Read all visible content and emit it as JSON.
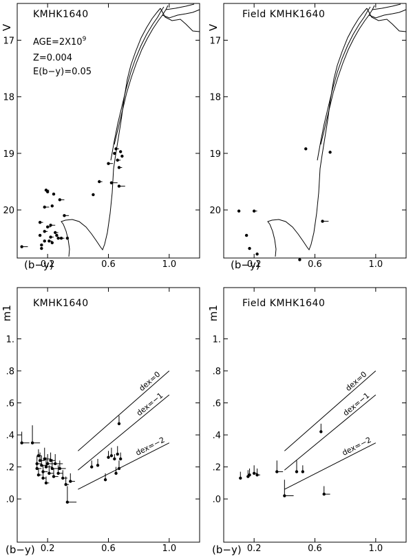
{
  "chart_data": [
    {
      "type": "scatter",
      "panel": "top-left",
      "title": "KMHK1640",
      "xlabel": "(b−y)",
      "ylabel": "V",
      "xlim": [
        0.0,
        1.2
      ],
      "ylim": [
        20.85,
        16.35
      ],
      "xticks": [
        {
          "v": 0.2,
          "label": "0.2"
        },
        {
          "v": 0.6,
          "label": "0.6"
        },
        {
          "v": 1.0,
          "label": "1.0"
        }
      ],
      "yticks": [
        {
          "v": 17,
          "label": "17"
        },
        {
          "v": 18,
          "label": "18"
        },
        {
          "v": 19,
          "label": "19"
        },
        {
          "v": 20,
          "label": "20"
        }
      ],
      "annotations": [
        {
          "text": "AGE=2X10",
          "sup": "9"
        },
        {
          "text": "Z=0.004"
        },
        {
          "text": "E(b−y)=0.05"
        }
      ],
      "points": [
        {
          "x": 0.03,
          "y": 20.65,
          "ex": 0.04
        },
        {
          "x": 0.15,
          "y": 20.45
        },
        {
          "x": 0.15,
          "y": 20.22,
          "ex": 0.02
        },
        {
          "x": 0.16,
          "y": 20.68
        },
        {
          "x": 0.16,
          "y": 20.62
        },
        {
          "x": 0.18,
          "y": 20.55
        },
        {
          "x": 0.18,
          "y": 20.38,
          "ex": 0.02
        },
        {
          "x": 0.18,
          "y": 19.95,
          "ex": 0.03
        },
        {
          "x": 0.19,
          "y": 19.65,
          "ex": 0.02
        },
        {
          "x": 0.2,
          "y": 20.3,
          "ex": 0.02
        },
        {
          "x": 0.2,
          "y": 19.68
        },
        {
          "x": 0.21,
          "y": 20.55,
          "ex": 0.02
        },
        {
          "x": 0.22,
          "y": 20.27,
          "ex": 0.03
        },
        {
          "x": 0.22,
          "y": 20.48,
          "ex": 0.02
        },
        {
          "x": 0.23,
          "y": 20.58
        },
        {
          "x": 0.23,
          "y": 19.93
        },
        {
          "x": 0.24,
          "y": 19.72
        },
        {
          "x": 0.25,
          "y": 20.4,
          "ex": 0.02
        },
        {
          "x": 0.26,
          "y": 20.45
        },
        {
          "x": 0.27,
          "y": 20.5,
          "ex": 0.03
        },
        {
          "x": 0.28,
          "y": 19.82,
          "ex": 0.03
        },
        {
          "x": 0.29,
          "y": 20.5,
          "ex": 0.02
        },
        {
          "x": 0.31,
          "y": 20.1,
          "ex": 0.03
        },
        {
          "x": 0.33,
          "y": 20.5
        },
        {
          "x": 0.5,
          "y": 19.73
        },
        {
          "x": 0.54,
          "y": 19.5,
          "ex": 0.02
        },
        {
          "x": 0.6,
          "y": 19.18,
          "ex": 0.03
        },
        {
          "x": 0.62,
          "y": 19.52,
          "ex": 0.04
        },
        {
          "x": 0.64,
          "y": 19.0
        },
        {
          "x": 0.65,
          "y": 18.92,
          "ex": 0.02
        },
        {
          "x": 0.66,
          "y": 19.12,
          "ex": 0.02
        },
        {
          "x": 0.67,
          "y": 19.25,
          "ex": 0.02
        },
        {
          "x": 0.67,
          "y": 19.58,
          "ex": 0.04
        },
        {
          "x": 0.68,
          "y": 18.97
        },
        {
          "x": 0.69,
          "y": 19.05
        }
      ]
    },
    {
      "type": "scatter",
      "panel": "top-right",
      "title": "Field KMHK1640",
      "xlabel": "(b−y)",
      "ylabel": "V",
      "xlim": [
        0.0,
        1.2
      ],
      "ylim": [
        20.85,
        16.35
      ],
      "xticks": [
        {
          "v": 0.2,
          "label": "0.2"
        },
        {
          "v": 0.6,
          "label": "0.6"
        },
        {
          "v": 1.0,
          "label": "1.0"
        }
      ],
      "yticks": [
        {
          "v": 17,
          "label": "17"
        },
        {
          "v": 18,
          "label": "18"
        },
        {
          "v": 19,
          "label": "19"
        },
        {
          "v": 20,
          "label": "20"
        }
      ],
      "points": [
        {
          "x": 0.1,
          "y": 20.02
        },
        {
          "x": 0.15,
          "y": 20.45
        },
        {
          "x": 0.17,
          "y": 20.68
        },
        {
          "x": 0.2,
          "y": 20.02,
          "ex": 0.02
        },
        {
          "x": 0.22,
          "y": 20.78
        },
        {
          "x": 0.5,
          "y": 20.88
        },
        {
          "x": 0.54,
          "y": 18.92
        },
        {
          "x": 0.65,
          "y": 20.2,
          "ex": 0.04
        },
        {
          "x": 0.7,
          "y": 18.98
        }
      ]
    },
    {
      "type": "scatter",
      "panel": "bottom-left",
      "title": "KMHK1640",
      "xlabel": "(b−y)",
      "ylabel": "m1",
      "xlim": [
        0.0,
        1.2
      ],
      "ylim": [
        -0.27,
        1.32
      ],
      "xticks": [
        {
          "v": 0.2,
          "label": "0.2"
        },
        {
          "v": 0.6,
          "label": "0.6"
        },
        {
          "v": 1.0,
          "label": "1.0"
        }
      ],
      "yticks": [
        {
          "v": 0,
          "label": ".0"
        },
        {
          "v": 0.2,
          "label": ".2"
        },
        {
          "v": 0.4,
          "label": ".4"
        },
        {
          "v": 0.6,
          "label": ".6"
        },
        {
          "v": 0.8,
          "label": ".8"
        },
        {
          "v": 1.0,
          "label": "1."
        }
      ],
      "dex_lines": [
        {
          "label": "dex=0",
          "x1": 0.4,
          "y1": 0.3,
          "x2": 1.0,
          "y2": 0.8
        },
        {
          "label": "dex=−1",
          "x1": 0.4,
          "y1": 0.18,
          "x2": 1.0,
          "y2": 0.65
        },
        {
          "label": "dex=−2",
          "x1": 0.4,
          "y1": 0.06,
          "x2": 1.0,
          "y2": 0.35
        }
      ],
      "points": [
        {
          "x": 0.03,
          "y": 0.35,
          "ex": 0.05,
          "ey": 0.07
        },
        {
          "x": 0.1,
          "y": 0.35,
          "ex": 0.05,
          "ey": 0.11
        },
        {
          "x": 0.13,
          "y": 0.22,
          "ex": 0.03,
          "ey": 0.05
        },
        {
          "x": 0.13,
          "y": 0.19,
          "ex": 0.03,
          "ey": 0.04
        },
        {
          "x": 0.14,
          "y": 0.27,
          "ex": 0.02,
          "ey": 0.04
        },
        {
          "x": 0.14,
          "y": 0.15,
          "ex": 0.02,
          "ey": 0.04
        },
        {
          "x": 0.15,
          "y": 0.24,
          "ex": 0.03,
          "ey": 0.05
        },
        {
          "x": 0.16,
          "y": 0.21,
          "ex": 0.04,
          "ey": 0.06
        },
        {
          "x": 0.17,
          "y": 0.17,
          "ex": 0.03,
          "ey": 0.04
        },
        {
          "x": 0.17,
          "y": 0.13,
          "ex": 0.02,
          "ey": 0.04
        },
        {
          "x": 0.18,
          "y": 0.25,
          "ex": 0.04,
          "ey": 0.07
        },
        {
          "x": 0.19,
          "y": 0.2,
          "ex": 0.04,
          "ey": 0.06
        },
        {
          "x": 0.19,
          "y": 0.1,
          "ex": 0.02,
          "ey": 0.04
        },
        {
          "x": 0.2,
          "y": 0.22,
          "ex": 0.05,
          "ey": 0.06
        },
        {
          "x": 0.21,
          "y": 0.16,
          "ex": 0.03,
          "ey": 0.05
        },
        {
          "x": 0.22,
          "y": 0.24,
          "ex": 0.03,
          "ey": 0.05
        },
        {
          "x": 0.23,
          "y": 0.19,
          "ex": 0.04,
          "ey": 0.06
        },
        {
          "x": 0.24,
          "y": 0.14,
          "ex": 0.03,
          "ey": 0.05
        },
        {
          "x": 0.25,
          "y": 0.22,
          "ex": 0.05,
          "ey": 0.06
        },
        {
          "x": 0.27,
          "y": 0.16,
          "ex": 0.03,
          "ey": 0.05
        },
        {
          "x": 0.28,
          "y": 0.19,
          "ex": 0.04,
          "ey": 0.05
        },
        {
          "x": 0.3,
          "y": 0.13,
          "ex": 0.03,
          "ey": 0.05
        },
        {
          "x": 0.32,
          "y": 0.09,
          "ex": 0.02,
          "ey": 0.05
        },
        {
          "x": 0.33,
          "y": -0.02,
          "ex": 0.06,
          "ey": 0.1
        },
        {
          "x": 0.35,
          "y": 0.11,
          "ex": 0.03,
          "ey": 0.05
        },
        {
          "x": 0.49,
          "y": 0.2,
          "ey": 0.04
        },
        {
          "x": 0.53,
          "y": 0.21,
          "ey": 0.04
        },
        {
          "x": 0.58,
          "y": 0.12,
          "ey": 0.04
        },
        {
          "x": 0.6,
          "y": 0.26,
          "ey": 0.04
        },
        {
          "x": 0.62,
          "y": 0.27,
          "ey": 0.05
        },
        {
          "x": 0.64,
          "y": 0.25,
          "ey": 0.03
        },
        {
          "x": 0.65,
          "y": 0.16,
          "ey": 0.04
        },
        {
          "x": 0.66,
          "y": 0.28,
          "ey": 0.05
        },
        {
          "x": 0.67,
          "y": 0.47,
          "ey": 0.05
        },
        {
          "x": 0.67,
          "y": 0.19,
          "ey": 0.05
        },
        {
          "x": 0.68,
          "y": 0.25,
          "ey": 0.04
        }
      ]
    },
    {
      "type": "scatter",
      "panel": "bottom-right",
      "title": "Field KMHK1640",
      "xlabel": "(b−y)",
      "ylabel": "m1",
      "xlim": [
        0.0,
        1.2
      ],
      "ylim": [
        -0.27,
        1.32
      ],
      "xticks": [
        {
          "v": 0.2,
          "label": "0.2"
        },
        {
          "v": 0.6,
          "label": "0.6"
        },
        {
          "v": 1.0,
          "label": "1.0"
        }
      ],
      "yticks": [
        {
          "v": 0,
          "label": ".0"
        },
        {
          "v": 0.2,
          "label": ".2"
        },
        {
          "v": 0.4,
          "label": ".4"
        },
        {
          "v": 0.6,
          "label": ".6"
        },
        {
          "v": 0.8,
          "label": ".8"
        },
        {
          "v": 1.0,
          "label": "1."
        }
      ],
      "dex_lines": [
        {
          "label": "dex=0",
          "x1": 0.4,
          "y1": 0.3,
          "x2": 1.0,
          "y2": 0.8
        },
        {
          "label": "dex=−1",
          "x1": 0.4,
          "y1": 0.18,
          "x2": 1.0,
          "y2": 0.65
        },
        {
          "label": "dex=−2",
          "x1": 0.4,
          "y1": 0.06,
          "x2": 1.0,
          "y2": 0.35
        }
      ],
      "points": [
        {
          "x": 0.11,
          "y": 0.13,
          "ey": 0.04
        },
        {
          "x": 0.16,
          "y": 0.14,
          "ey": 0.04
        },
        {
          "x": 0.17,
          "y": 0.15,
          "ey": 0.04
        },
        {
          "x": 0.2,
          "y": 0.16,
          "ex": 0.02,
          "ey": 0.05
        },
        {
          "x": 0.22,
          "y": 0.15,
          "ex": 0.02,
          "ey": 0.04
        },
        {
          "x": 0.35,
          "y": 0.17,
          "ex": 0.04,
          "ey": 0.07
        },
        {
          "x": 0.4,
          "y": 0.02,
          "ex": 0.06,
          "ey": 0.1
        },
        {
          "x": 0.48,
          "y": 0.17,
          "ey": 0.07
        },
        {
          "x": 0.52,
          "y": 0.17,
          "ey": 0.04
        },
        {
          "x": 0.64,
          "y": 0.42,
          "ey": 0.05
        },
        {
          "x": 0.66,
          "y": 0.03,
          "ex": 0.04,
          "ey": 0.05
        }
      ]
    }
  ]
}
